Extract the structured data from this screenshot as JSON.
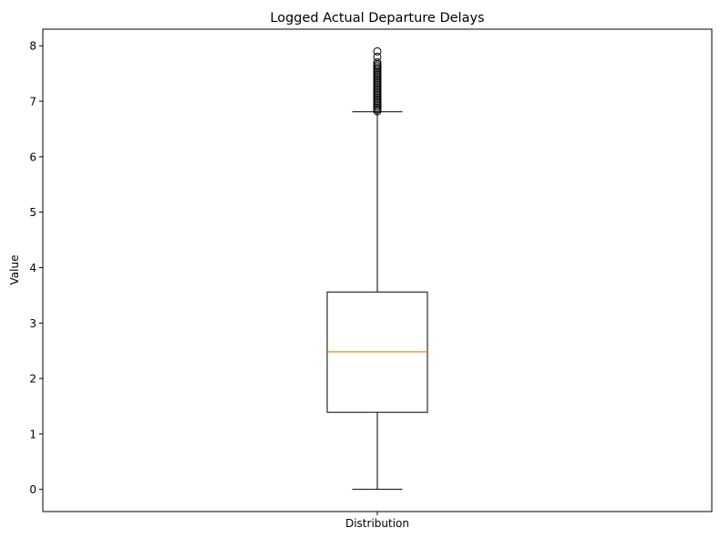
{
  "chart_data": {
    "type": "box",
    "title": "Logged Actual Departure Delays",
    "xlabel": "",
    "ylabel": "Value",
    "ylim": [
      -0.4,
      8.3
    ],
    "yticks": [
      0,
      1,
      2,
      3,
      4,
      5,
      6,
      7,
      8
    ],
    "categories": [
      "Distribution"
    ],
    "boxes": [
      {
        "category": "Distribution",
        "whisker_low": 0,
        "q1": 1.39,
        "median": 2.48,
        "q3": 3.56,
        "whisker_high": 6.81,
        "outliers": [
          6.82,
          6.85,
          6.88,
          6.91,
          6.94,
          6.97,
          7.0,
          7.03,
          7.06,
          7.09,
          7.12,
          7.15,
          7.18,
          7.21,
          7.24,
          7.27,
          7.3,
          7.33,
          7.36,
          7.39,
          7.42,
          7.45,
          7.48,
          7.51,
          7.54,
          7.57,
          7.6,
          7.63,
          7.66,
          7.7,
          7.8,
          7.9
        ]
      }
    ],
    "grid": false,
    "colors": {
      "box": "#000000",
      "median": "#ff7f0e",
      "outlier": "#000000"
    }
  }
}
